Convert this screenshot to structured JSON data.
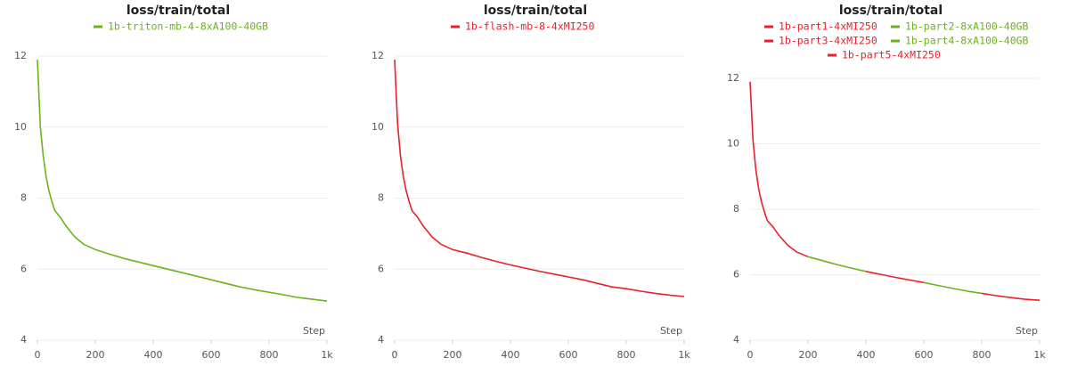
{
  "chart_data": [
    {
      "type": "line",
      "title": "loss/train/total",
      "x_label": "Step",
      "legend": "top",
      "grid": true,
      "x": [
        0,
        10,
        20,
        30,
        40,
        50,
        60,
        80,
        100,
        130,
        160,
        200,
        250,
        300,
        350,
        400,
        450,
        500,
        550,
        600,
        650,
        700,
        750,
        800,
        850,
        900,
        950,
        1000
      ],
      "series": [
        {
          "name": "1b-triton-mb-4-8xA100-40GB",
          "color": "#6bb31a",
          "values": [
            11.9,
            10.0,
            9.2,
            8.6,
            8.2,
            7.9,
            7.65,
            7.45,
            7.2,
            6.9,
            6.7,
            6.55,
            6.42,
            6.3,
            6.2,
            6.1,
            6.0,
            5.9,
            5.8,
            5.7,
            5.6,
            5.5,
            5.42,
            5.35,
            5.28,
            5.2,
            5.15,
            5.1
          ]
        }
      ],
      "xlim": [
        0,
        1000
      ],
      "xticks": [
        0,
        200,
        400,
        600,
        800,
        {
          "value": 1000,
          "label": "1k"
        }
      ],
      "ylim": [
        4,
        12
      ],
      "yticks": [
        4,
        6,
        8,
        10,
        12
      ]
    },
    {
      "type": "line",
      "title": "loss/train/total",
      "x_label": "Step",
      "legend": "top",
      "grid": true,
      "x": [
        0,
        10,
        20,
        30,
        40,
        50,
        60,
        80,
        100,
        130,
        160,
        200,
        250,
        300,
        350,
        400,
        450,
        500,
        550,
        600,
        650,
        700,
        750,
        800,
        850,
        900,
        950,
        1000
      ],
      "series": [
        {
          "name": "1b-flash-mb-8-4xMI250",
          "color": "#e8202a",
          "values": [
            11.9,
            10.1,
            9.2,
            8.6,
            8.2,
            7.9,
            7.65,
            7.45,
            7.2,
            6.9,
            6.7,
            6.55,
            6.45,
            6.33,
            6.22,
            6.12,
            6.03,
            5.94,
            5.86,
            5.78,
            5.7,
            5.6,
            5.5,
            5.45,
            5.38,
            5.32,
            5.27,
            5.23
          ]
        }
      ],
      "xlim": [
        0,
        1000
      ],
      "xticks": [
        0,
        200,
        400,
        600,
        800,
        {
          "value": 1000,
          "label": "1k"
        }
      ],
      "ylim": [
        4,
        12
      ],
      "yticks": [
        4,
        6,
        8,
        10,
        12
      ]
    },
    {
      "type": "line",
      "title": "loss/train/total",
      "x_label": "Step",
      "legend": "top",
      "grid": true,
      "x": [
        0,
        10,
        20,
        30,
        40,
        50,
        60,
        80,
        100,
        130,
        160,
        200,
        250,
        300,
        350,
        400,
        450,
        500,
        550,
        600,
        650,
        700,
        750,
        800,
        850,
        900,
        950,
        1000
      ],
      "series": [
        {
          "name": "1b-part1-4xMI250",
          "color": "#e8202a",
          "values": [
            11.9,
            10.1,
            9.2,
            8.6,
            8.2,
            7.9,
            7.65,
            7.45,
            7.2,
            6.9,
            6.7,
            6.55,
            null,
            null,
            null,
            null,
            null,
            null,
            null,
            null,
            null,
            null,
            null,
            null,
            null,
            null,
            null,
            null
          ]
        },
        {
          "name": "1b-part2-8xA100-40GB",
          "color": "#6bb31a",
          "values": [
            null,
            null,
            null,
            null,
            null,
            null,
            null,
            null,
            null,
            null,
            null,
            6.55,
            6.43,
            6.31,
            6.2,
            6.1,
            null,
            null,
            null,
            null,
            null,
            null,
            null,
            null,
            null,
            null,
            null,
            null
          ]
        },
        {
          "name": "1b-part3-4xMI250",
          "color": "#e8202a",
          "values": [
            null,
            null,
            null,
            null,
            null,
            null,
            null,
            null,
            null,
            null,
            null,
            null,
            null,
            null,
            null,
            6.1,
            6.01,
            5.92,
            5.84,
            5.76,
            null,
            null,
            null,
            null,
            null,
            null,
            null,
            null
          ]
        },
        {
          "name": "1b-part4-8xA100-40GB",
          "color": "#6bb31a",
          "values": [
            null,
            null,
            null,
            null,
            null,
            null,
            null,
            null,
            null,
            null,
            null,
            null,
            null,
            null,
            null,
            null,
            null,
            null,
            null,
            5.76,
            5.67,
            5.58,
            5.5,
            5.43,
            null,
            null,
            null,
            null
          ]
        },
        {
          "name": "1b-part5-4xMI250",
          "color": "#e8202a",
          "values": [
            null,
            null,
            null,
            null,
            null,
            null,
            null,
            null,
            null,
            null,
            null,
            null,
            null,
            null,
            null,
            null,
            null,
            null,
            null,
            null,
            null,
            null,
            null,
            5.43,
            5.36,
            5.3,
            5.25,
            5.22
          ]
        }
      ],
      "xlim": [
        0,
        1000
      ],
      "xticks": [
        0,
        200,
        400,
        600,
        800,
        {
          "value": 1000,
          "label": "1k"
        }
      ],
      "ylim": [
        4,
        12
      ],
      "yticks": [
        4,
        6,
        8,
        10,
        12
      ]
    }
  ]
}
